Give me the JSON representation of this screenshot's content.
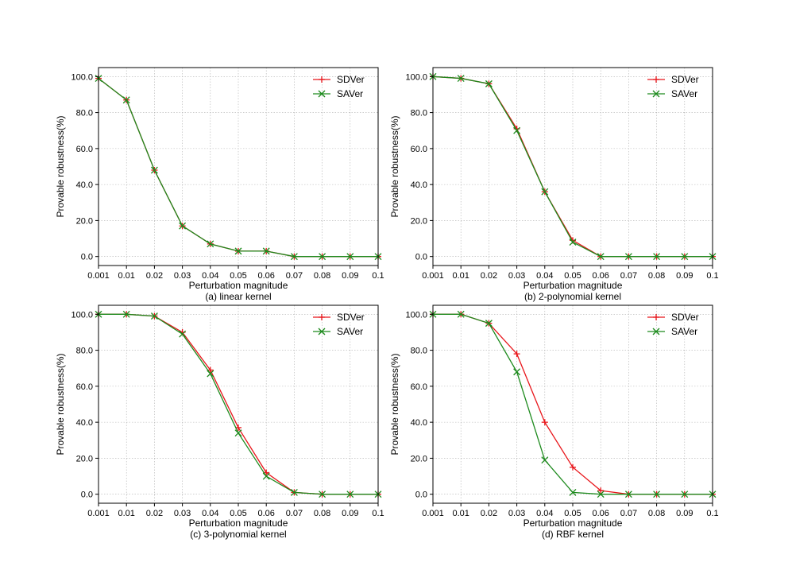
{
  "figure": {
    "xlabel": "Perturbation magnitude",
    "ylabel": "Provable robustness(%)"
  },
  "colors": {
    "SDVer": "#e8161b",
    "SAVer": "#1d8a1d",
    "grid": "#b0b0b0"
  },
  "chart_data": [
    {
      "type": "line",
      "caption": "(a) linear kernel",
      "xlabel": "Perturbation magnitude",
      "ylabel": "Provable robustness(%)",
      "x": [
        "0.001",
        "0.01",
        "0.02",
        "0.03",
        "0.04",
        "0.05",
        "0.06",
        "0.07",
        "0.08",
        "0.09",
        "0.1"
      ],
      "y_ticks": [
        "0.0",
        "20.0",
        "40.0",
        "60.0",
        "80.0",
        "100.0"
      ],
      "ylim": [
        -5,
        105
      ],
      "grid": true,
      "legend": "upper-right",
      "series": [
        {
          "name": "SDVer",
          "marker": "+",
          "values": [
            99,
            87,
            48,
            17,
            7,
            3,
            3,
            0,
            0,
            0,
            0
          ]
        },
        {
          "name": "SAVer",
          "marker": "x",
          "values": [
            99,
            87,
            48,
            17,
            7,
            3,
            3,
            0,
            0,
            0,
            0
          ]
        }
      ]
    },
    {
      "type": "line",
      "caption": "(b) 2-polynomial kernel",
      "xlabel": "Perturbation magnitude",
      "ylabel": "Provable robustness(%)",
      "x": [
        "0.001",
        "0.01",
        "0.02",
        "0.03",
        "0.04",
        "0.05",
        "0.06",
        "0.07",
        "0.08",
        "0.09",
        "0.1"
      ],
      "y_ticks": [
        "0.0",
        "20.0",
        "40.0",
        "60.0",
        "80.0",
        "100.0"
      ],
      "ylim": [
        -5,
        105
      ],
      "grid": true,
      "legend": "upper-right",
      "series": [
        {
          "name": "SDVer",
          "marker": "+",
          "values": [
            100,
            99,
            96,
            71,
            36,
            9,
            0,
            0,
            0,
            0,
            0
          ]
        },
        {
          "name": "SAVer",
          "marker": "x",
          "values": [
            100,
            99,
            96,
            70,
            36,
            8,
            0,
            0,
            0,
            0,
            0
          ]
        }
      ]
    },
    {
      "type": "line",
      "caption": "(c) 3-polynomial kernel",
      "xlabel": "Perturbation magnitude",
      "ylabel": "Provable robustness(%)",
      "x": [
        "0.001",
        "0.01",
        "0.02",
        "0.03",
        "0.04",
        "0.05",
        "0.06",
        "0.07",
        "0.08",
        "0.09",
        "0.1"
      ],
      "y_ticks": [
        "0.0",
        "20.0",
        "40.0",
        "60.0",
        "80.0",
        "100.0"
      ],
      "ylim": [
        -5,
        105
      ],
      "grid": true,
      "legend": "upper-right",
      "series": [
        {
          "name": "SDVer",
          "marker": "+",
          "values": [
            100,
            100,
            99,
            90,
            69,
            37,
            12,
            1,
            0,
            0,
            0
          ]
        },
        {
          "name": "SAVer",
          "marker": "x",
          "values": [
            100,
            100,
            99,
            89,
            67,
            34,
            10,
            1,
            0,
            0,
            0
          ]
        }
      ]
    },
    {
      "type": "line",
      "caption": "(d) RBF kernel",
      "xlabel": "Perturbation magnitude",
      "ylabel": "Provable robustness(%)",
      "x": [
        "0.001",
        "0.01",
        "0.02",
        "0.03",
        "0.04",
        "0.05",
        "0.06",
        "0.07",
        "0.08",
        "0.09",
        "0.1"
      ],
      "y_ticks": [
        "0.0",
        "20.0",
        "40.0",
        "60.0",
        "80.0",
        "100.0"
      ],
      "ylim": [
        -5,
        105
      ],
      "grid": true,
      "legend": "upper-right",
      "series": [
        {
          "name": "SDVer",
          "marker": "+",
          "values": [
            100,
            100,
            95,
            78,
            40,
            15,
            2,
            0,
            0,
            0,
            0
          ]
        },
        {
          "name": "SAVer",
          "marker": "x",
          "values": [
            100,
            100,
            95,
            68,
            19,
            1,
            0,
            0,
            0,
            0,
            0
          ]
        }
      ]
    }
  ]
}
